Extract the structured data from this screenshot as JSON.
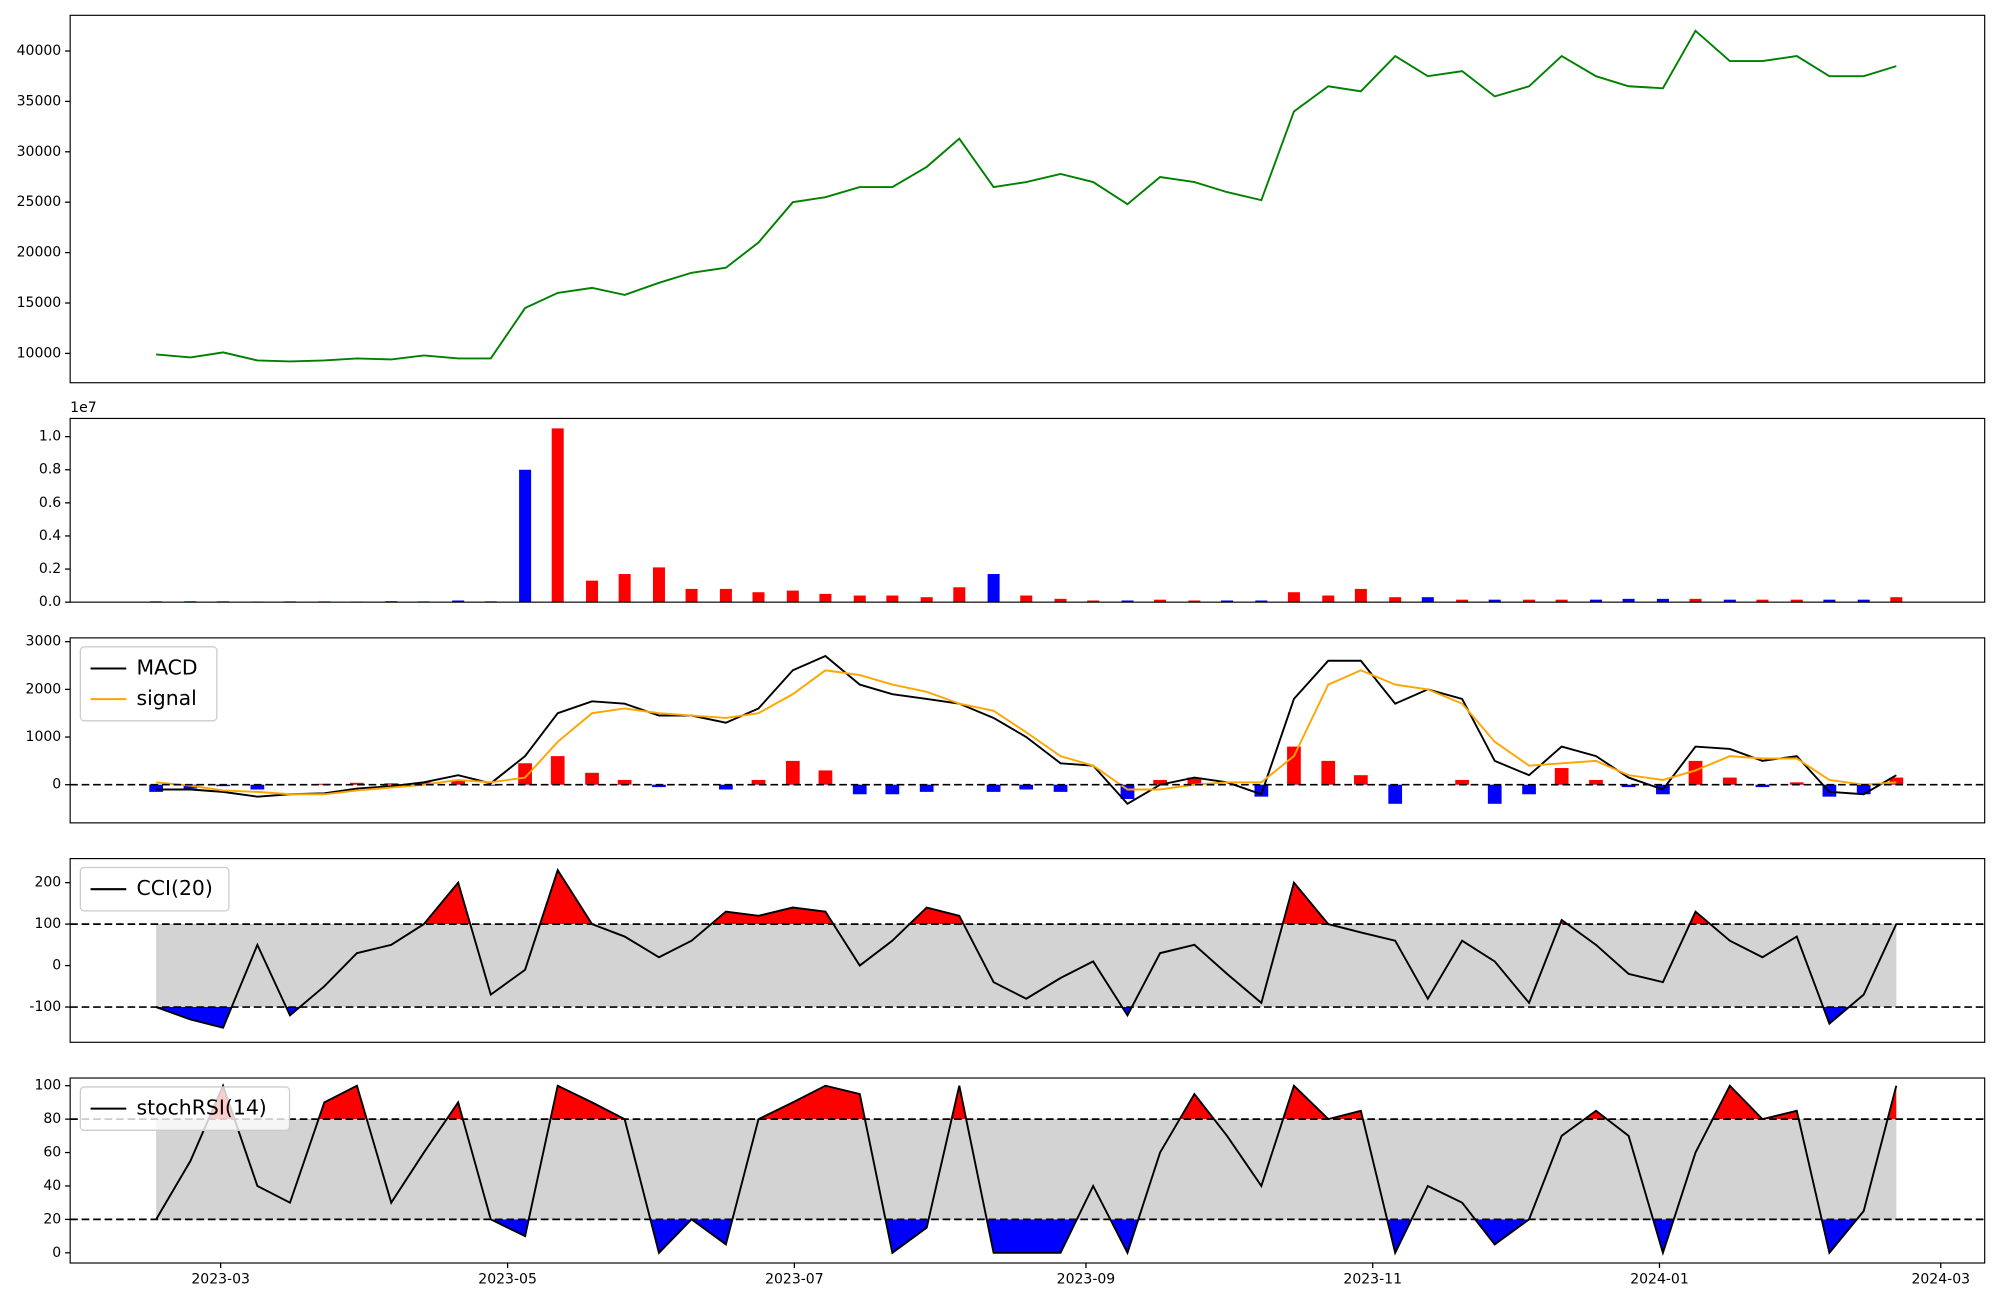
{
  "chart_data": {
    "type": "panels",
    "x": [
      2023.124,
      2023.144,
      2023.163,
      2023.183,
      2023.202,
      2023.222,
      2023.241,
      2023.261,
      2023.28,
      2023.3,
      2023.319,
      2023.339,
      2023.358,
      2023.378,
      2023.397,
      2023.417,
      2023.436,
      2023.456,
      2023.475,
      2023.495,
      2023.514,
      2023.534,
      2023.553,
      2023.573,
      2023.592,
      2023.612,
      2023.631,
      2023.651,
      2023.67,
      2023.69,
      2023.709,
      2023.729,
      2023.748,
      2023.768,
      2023.787,
      2023.807,
      2023.826,
      2023.846,
      2023.865,
      2023.885,
      2023.904,
      2023.924,
      2023.943,
      2023.963,
      2023.982,
      2024.002,
      2024.021,
      2024.041,
      2024.06,
      2024.08,
      2024.099,
      2024.119,
      2024.138
    ],
    "xlim": [
      2023.0739,
      2024.1895
    ],
    "xticks": [
      {
        "value": 2023.1616,
        "label": "2023-03"
      },
      {
        "value": 2023.3288,
        "label": "2023-05"
      },
      {
        "value": 2023.4959,
        "label": "2023-07"
      },
      {
        "value": 2023.6658,
        "label": "2023-09"
      },
      {
        "value": 2023.8329,
        "label": "2023-11"
      },
      {
        "value": 2024.0,
        "label": "2024-01"
      },
      {
        "value": 2024.1639,
        "label": "2024-03"
      }
    ],
    "panels": [
      {
        "type": "line",
        "ylim": [
          7090,
          43540
        ],
        "yticks": [
          10000,
          15000,
          20000,
          25000,
          30000,
          35000,
          40000
        ],
        "series": [
          {
            "color": "green",
            "values": [
              9900,
              9600,
              10100,
              9300,
              9200,
              9300,
              9500,
              9400,
              9800,
              9500,
              9500,
              14500,
              16000,
              16500,
              15800,
              17000,
              18000,
              18500,
              21000,
              25000,
              25500,
              26500,
              26500,
              28500,
              31300,
              26500,
              27000,
              27800,
              27000,
              24800,
              27500,
              27000,
              26000,
              25200,
              34000,
              36500,
              36000,
              39500,
              37500,
              38000,
              35500,
              36500,
              39500,
              37500,
              36500,
              36300,
              42000,
              39000,
              39000,
              39500,
              37500,
              37500,
              38500
            ]
          }
        ]
      },
      {
        "type": "bar",
        "offset_label": "1e7",
        "ylim": [
          0,
          11100000
        ],
        "yticks": [
          {
            "value": 0,
            "label": "0.0"
          },
          {
            "value": 2000000,
            "label": "0.2"
          },
          {
            "value": 4000000,
            "label": "0.4"
          },
          {
            "value": 6000000,
            "label": "0.6"
          },
          {
            "value": 8000000,
            "label": "0.8"
          },
          {
            "value": 10000000,
            "label": "1.0"
          }
        ],
        "values": [
          50000,
          60000,
          50000,
          40000,
          50000,
          50000,
          40000,
          60000,
          50000,
          100000,
          50000,
          8000000,
          10500000,
          1300000,
          1700000,
          2100000,
          800000,
          800000,
          600000,
          700000,
          500000,
          400000,
          400000,
          300000,
          900000,
          1700000,
          400000,
          200000,
          100000,
          100000,
          150000,
          100000,
          100000,
          100000,
          600000,
          400000,
          800000,
          300000,
          300000,
          150000,
          150000,
          150000,
          150000,
          150000,
          200000,
          200000,
          200000,
          150000,
          150000,
          150000,
          150000,
          150000,
          300000
        ],
        "bar_colors": [
          "blue",
          "red",
          "blue",
          "blue",
          "red",
          "red",
          "red",
          "blue",
          "red",
          "blue",
          "blue",
          "blue",
          "red",
          "red",
          "red",
          "red",
          "red",
          "red",
          "red",
          "red",
          "red",
          "red",
          "red",
          "red",
          "red",
          "blue",
          "red",
          "red",
          "red",
          "blue",
          "red",
          "red",
          "blue",
          "blue",
          "red",
          "red",
          "red",
          "red",
          "blue",
          "red",
          "blue",
          "red",
          "red",
          "blue",
          "blue",
          "blue",
          "red",
          "blue",
          "red",
          "red",
          "blue",
          "blue",
          "red"
        ]
      },
      {
        "type": "macd",
        "ylim": [
          -800,
          3080
        ],
        "yticks": [
          0,
          1000,
          2000,
          3000
        ],
        "hlines": [
          0
        ],
        "legend": "upper left",
        "series": [
          {
            "name": "MACD",
            "color": "black",
            "values": [
              -100,
              -100,
              -150,
              -250,
              -200,
              -180,
              -80,
              -30,
              50,
              200,
              30,
              600,
              1500,
              1750,
              1700,
              1450,
              1450,
              1300,
              1600,
              2400,
              2700,
              2100,
              1900,
              1800,
              1700,
              1400,
              1000,
              450,
              400,
              -400,
              0,
              150,
              50,
              -200,
              1800,
              2600,
              2600,
              1700,
              2000,
              1800,
              500,
              200,
              800,
              600,
              150,
              -100,
              800,
              750,
              500,
              600,
              -150,
              -200,
              200
            ]
          },
          {
            "name": "signal",
            "color": "orange",
            "values": [
              50,
              -20,
              -120,
              -150,
              -200,
              -200,
              -120,
              -60,
              0,
              100,
              50,
              150,
              900,
              1500,
              1600,
              1500,
              1450,
              1400,
              1500,
              1900,
              2400,
              2300,
              2100,
              1950,
              1700,
              1550,
              1100,
              600,
              400,
              -100,
              -100,
              0,
              50,
              50,
              600,
              2100,
              2400,
              2100,
              2000,
              1700,
              900,
              400,
              450,
              500,
              200,
              100,
              300,
              600,
              550,
              550,
              100,
              0,
              50
            ]
          }
        ],
        "histogram": [
          -150,
          -80,
          -30,
          -100,
          0,
          20,
          40,
          30,
          50,
          100,
          -20,
          450,
          600,
          250,
          100,
          -50,
          0,
          -100,
          100,
          500,
          300,
          -200,
          -200,
          -150,
          0,
          -150,
          -100,
          -150,
          0,
          -300,
          100,
          150,
          0,
          -250,
          800,
          500,
          200,
          -400,
          0,
          100,
          -400,
          -200,
          350,
          100,
          -50,
          -200,
          500,
          150,
          -50,
          50,
          -250,
          -200,
          150
        ],
        "hist_up_color": "red",
        "hist_down_color": "blue"
      },
      {
        "type": "band",
        "ylim": [
          -185,
          258
        ],
        "yticks": [
          -100,
          0,
          100,
          200
        ],
        "band": [
          -100,
          100
        ],
        "band_color": "#d3d3d3",
        "above_color": "red",
        "below_color": "blue",
        "legend": "upper left",
        "series": [
          {
            "name": "CCI(20)",
            "color": "black",
            "values": [
              -100,
              -130,
              -150,
              50,
              -120,
              -50,
              30,
              50,
              100,
              200,
              -70,
              -10,
              230,
              100,
              70,
              20,
              60,
              130,
              120,
              140,
              130,
              0,
              60,
              140,
              120,
              -40,
              -80,
              -30,
              10,
              -120,
              30,
              50,
              -20,
              -90,
              200,
              100,
              80,
              60,
              -80,
              60,
              10,
              -90,
              110,
              50,
              -20,
              -40,
              130,
              60,
              20,
              70,
              -140,
              -70,
              100
            ]
          }
        ]
      },
      {
        "type": "band",
        "ylim": [
          -6.1,
          104.6
        ],
        "yticks": [
          0,
          20,
          40,
          60,
          80,
          100
        ],
        "band": [
          20,
          80
        ],
        "band_color": "#d3d3d3",
        "above_color": "red",
        "below_color": "blue",
        "legend": "upper left",
        "series": [
          {
            "name": "stochRSI(14)",
            "color": "black",
            "values": [
              20,
              55,
              100,
              40,
              30,
              90,
              100,
              30,
              60,
              90,
              20,
              10,
              100,
              90,
              80,
              0,
              20,
              5,
              80,
              90,
              100,
              95,
              0,
              15,
              100,
              0,
              0,
              0,
              40,
              0,
              60,
              95,
              70,
              40,
              100,
              80,
              85,
              0,
              40,
              30,
              5,
              20,
              70,
              85,
              70,
              0,
              60,
              100,
              80,
              85,
              0,
              25,
              100
            ]
          }
        ]
      }
    ]
  }
}
